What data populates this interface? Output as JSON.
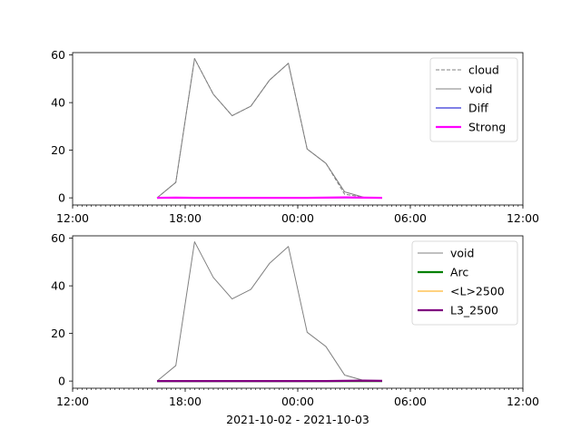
{
  "chart_data": [
    {
      "type": "line",
      "x_range": [
        "2021-10-02 12:00",
        "2021-10-03 12:00"
      ],
      "ylim": [
        -3.0,
        61.0
      ],
      "x_ticks": [
        "12:00",
        "18:00",
        "00:00",
        "06:00",
        "12:00"
      ],
      "y_ticks": [
        "0",
        "20",
        "40",
        "60"
      ],
      "x": [
        "2021-10-02 16:30",
        "2021-10-02 17:30",
        "2021-10-02 18:30",
        "2021-10-02 19:30",
        "2021-10-02 20:30",
        "2021-10-02 21:30",
        "2021-10-02 22:30",
        "2021-10-02 23:30",
        "2021-10-03 00:30",
        "2021-10-03 01:30",
        "2021-10-03 02:30",
        "2021-10-03 03:30",
        "2021-10-03 04:30"
      ],
      "legend_position": "top-right",
      "series": [
        {
          "name": "cloud",
          "color": "#808080",
          "style": "dashed",
          "width": 1,
          "values": [
            0,
            6.5,
            58.5,
            43.5,
            34.5,
            38.5,
            49.5,
            56.5,
            20.5,
            14.5,
            1.5,
            0.3,
            0
          ]
        },
        {
          "name": "void",
          "color": "#808080",
          "style": "solid",
          "width": 1,
          "values": [
            0,
            6.5,
            58.5,
            43.5,
            34.5,
            38.5,
            49.5,
            56.5,
            20.5,
            14.5,
            2.5,
            0.3,
            0
          ]
        },
        {
          "name": "Diff",
          "color": "#0000cc",
          "style": "solid",
          "width": 1,
          "values": [
            0,
            0,
            0,
            0,
            0,
            0,
            0,
            0,
            0,
            0,
            0,
            0,
            0
          ]
        },
        {
          "name": "Strong",
          "color": "#ff00ff",
          "style": "solid",
          "width": 2.2,
          "values": [
            0,
            0.1,
            0,
            0,
            0,
            0,
            0,
            0,
            0,
            0.1,
            0.2,
            0.1,
            0
          ]
        }
      ]
    },
    {
      "type": "line",
      "x_range": [
        "2021-10-02 12:00",
        "2021-10-03 12:00"
      ],
      "ylim": [
        -3.0,
        61.0
      ],
      "x_ticks": [
        "12:00",
        "18:00",
        "00:00",
        "06:00",
        "12:00"
      ],
      "y_ticks": [
        "0",
        "20",
        "40",
        "60"
      ],
      "x": [
        "2021-10-02 16:30",
        "2021-10-02 17:30",
        "2021-10-02 18:30",
        "2021-10-02 19:30",
        "2021-10-02 20:30",
        "2021-10-02 21:30",
        "2021-10-02 22:30",
        "2021-10-02 23:30",
        "2021-10-03 00:30",
        "2021-10-03 01:30",
        "2021-10-03 02:30",
        "2021-10-03 03:30",
        "2021-10-03 04:30"
      ],
      "xlabel": "2021-10-02 - 2021-10-03",
      "legend_position": "top-right",
      "series": [
        {
          "name": "void",
          "color": "#808080",
          "style": "solid",
          "width": 1,
          "values": [
            0,
            6.5,
            58.5,
            43.5,
            34.5,
            38.5,
            49.5,
            56.5,
            20.5,
            14.5,
            2.5,
            0.3,
            0
          ]
        },
        {
          "name": "Arc",
          "color": "#008000",
          "style": "solid",
          "width": 2.2,
          "values": [
            0,
            0,
            0,
            0,
            0,
            0,
            0,
            0,
            0,
            0,
            0,
            0,
            0
          ]
        },
        {
          "name": "<L>2500",
          "color": "#ffa500",
          "style": "solid",
          "width": 1,
          "values": [
            0,
            0,
            0,
            0,
            0,
            0,
            0,
            0,
            0,
            0,
            0,
            0,
            0
          ]
        },
        {
          "name": "L3_2500",
          "color": "#800080",
          "style": "solid",
          "width": 2.2,
          "values": [
            0,
            0,
            0,
            0,
            0,
            0,
            0,
            0,
            0,
            0,
            0.1,
            0.2,
            0.1
          ]
        }
      ]
    }
  ]
}
